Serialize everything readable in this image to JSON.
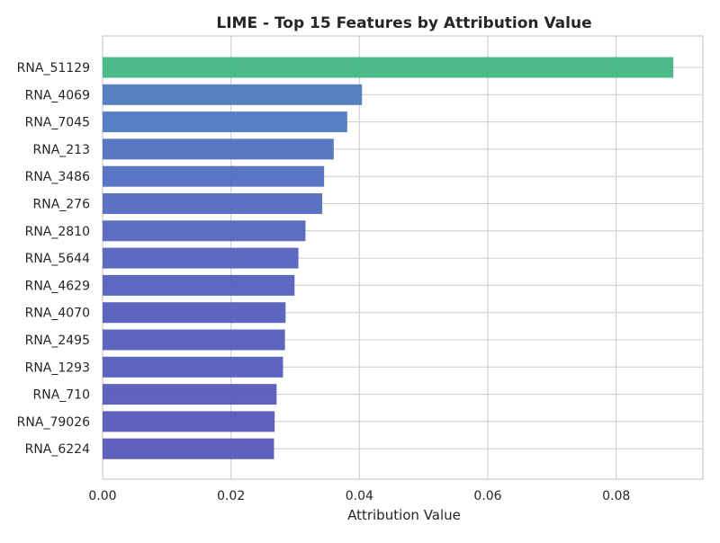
{
  "chart_data": {
    "type": "bar",
    "orientation": "horizontal",
    "title": "LIME - Top 15 Features by Attribution Value",
    "xlabel": "Attribution Value",
    "ylabel": "",
    "xlim": [
      0,
      0.0935
    ],
    "xticks": [
      0.0,
      0.02,
      0.04,
      0.06,
      0.08
    ],
    "xtick_labels": [
      "0.00",
      "0.02",
      "0.04",
      "0.06",
      "0.08"
    ],
    "grid": true,
    "legend": "none",
    "categories": [
      "RNA_51129",
      "RNA_4069",
      "RNA_7045",
      "RNA_213",
      "RNA_3486",
      "RNA_276",
      "RNA_2810",
      "RNA_5644",
      "RNA_4629",
      "RNA_4070",
      "RNA_2495",
      "RNA_1293",
      "RNA_710",
      "RNA_79026",
      "RNA_6224"
    ],
    "values": [
      0.0889,
      0.0404,
      0.0381,
      0.036,
      0.0345,
      0.0342,
      0.0316,
      0.0305,
      0.0299,
      0.0285,
      0.0284,
      0.0281,
      0.0271,
      0.0268,
      0.0267
    ],
    "colors": [
      "#3db57f",
      "#4979c0",
      "#4b74c0",
      "#4d6dbf",
      "#4e6abe",
      "#4f68be",
      "#5062bd",
      "#505fbc",
      "#515dbc",
      "#525abb",
      "#5259bb",
      "#5258bb",
      "#5356ba",
      "#5355ba",
      "#5355ba"
    ]
  }
}
